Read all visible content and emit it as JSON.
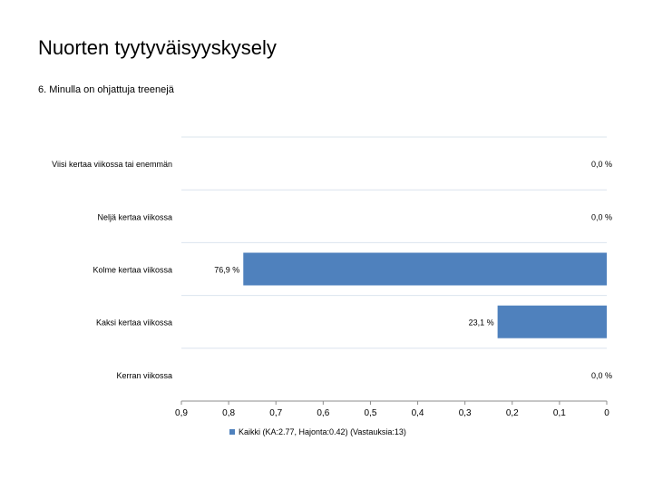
{
  "page": {
    "title": "Nuorten tyytyväisyyskysely",
    "subtitle": "6. Minulla on ohjattuja treenejä"
  },
  "chart_data": {
    "type": "bar",
    "orientation": "horizontal",
    "categories": [
      "Viisi kertaa viikossa tai enemmän",
      "Neljä kertaa viikossa",
      "Kolme kertaa viikossa",
      "Kaksi kertaa viikossa",
      "Kerran viikossa"
    ],
    "series": [
      {
        "name": "Kaikki (KA:2.77, Hajonta:0.42) (Vastauksia:13)",
        "values": [
          0.0,
          0.0,
          0.769,
          0.231,
          0.0
        ]
      }
    ],
    "value_labels": [
      "0,0 %",
      "0,0 %",
      "76,9 %",
      "23,1 %",
      "0,0 %"
    ],
    "x_ticks": [
      "0,9",
      "0,8",
      "0,7",
      "0,6",
      "0,5",
      "0,4",
      "0,3",
      "0,2",
      "0,1",
      "0"
    ],
    "xlim": [
      0.9,
      0
    ],
    "x_reversed": true,
    "grid": "horizontal",
    "legend_position": "bottom",
    "colors": {
      "bar": "#4f81bd",
      "grid": "#dbe4ee",
      "axis": "#8c8c8c"
    }
  }
}
